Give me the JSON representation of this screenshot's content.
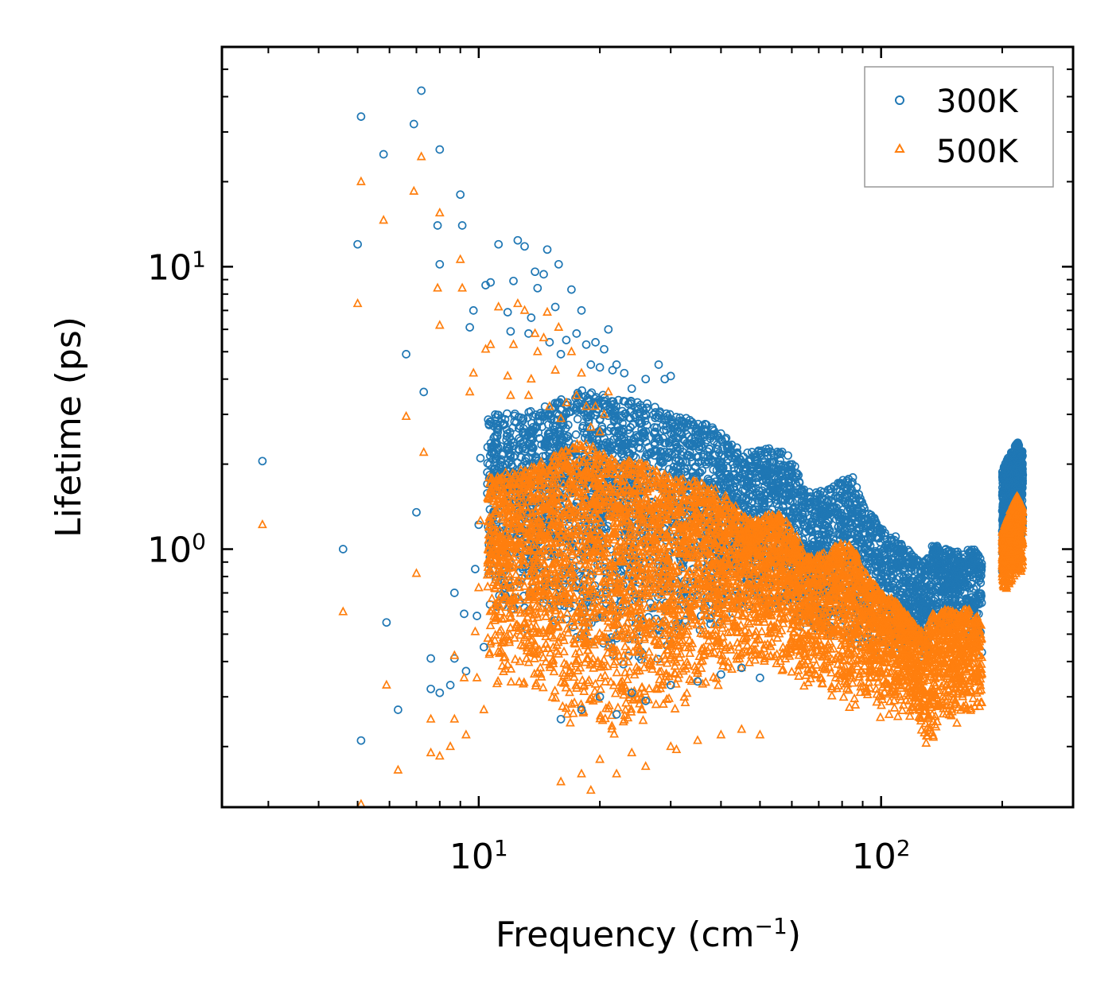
{
  "chart_data": {
    "type": "scatter",
    "xscale": "log",
    "yscale": "log",
    "xlabel": "Frequency (cm",
    "xlabel_sup": "−1",
    "xlabel_close": ")",
    "ylabel": "Lifetime (ps)",
    "xlim": [
      2.3,
      300
    ],
    "ylim": [
      0.122,
      60
    ],
    "legend": "top-right",
    "x_ticks": [
      {
        "value": 10,
        "base": "10",
        "exp": "1"
      },
      {
        "value": 100,
        "base": "10",
        "exp": "2"
      }
    ],
    "y_ticks": [
      {
        "value": 1,
        "base": "10",
        "exp": "0"
      },
      {
        "value": 10,
        "base": "10",
        "exp": "1"
      }
    ],
    "series": [
      {
        "name": "300K",
        "color": "#1f77b4",
        "marker": "circle",
        "points": [
          [
            2.9,
            2.05
          ],
          [
            4.6,
            1.0
          ],
          [
            5.0,
            12.0
          ],
          [
            5.1,
            34.0
          ],
          [
            5.1,
            0.21
          ],
          [
            5.8,
            25.0
          ],
          [
            5.9,
            0.55
          ],
          [
            6.3,
            0.27
          ],
          [
            6.6,
            4.9
          ],
          [
            6.9,
            32.0
          ],
          [
            7.0,
            1.35
          ],
          [
            7.2,
            42.0
          ],
          [
            7.3,
            3.6
          ],
          [
            7.6,
            0.41
          ],
          [
            7.6,
            0.32
          ],
          [
            7.9,
            14.0
          ],
          [
            8.0,
            10.2
          ],
          [
            8.0,
            26.0
          ],
          [
            8.0,
            0.31
          ],
          [
            8.5,
            0.33
          ],
          [
            8.7,
            0.41
          ],
          [
            8.7,
            0.7
          ],
          [
            9.0,
            18.0
          ],
          [
            9.1,
            14.0
          ],
          [
            9.2,
            0.59
          ],
          [
            9.3,
            0.37
          ],
          [
            9.5,
            6.1
          ],
          [
            9.7,
            7.0
          ],
          [
            9.8,
            0.85
          ],
          [
            9.9,
            0.58
          ],
          [
            10.0,
            1.22
          ],
          [
            10.1,
            2.1
          ],
          [
            10.3,
            0.45
          ],
          [
            10.4,
            8.6
          ],
          [
            10.7,
            8.8
          ],
          [
            10.8,
            2.2
          ],
          [
            11.2,
            12.0
          ],
          [
            11.8,
            6.9
          ],
          [
            12.0,
            5.9
          ],
          [
            12.2,
            8.9
          ],
          [
            12.5,
            12.4
          ],
          [
            12.9,
            2.9
          ],
          [
            13.0,
            11.8
          ],
          [
            13.3,
            5.8
          ],
          [
            13.5,
            6.6
          ],
          [
            13.8,
            9.6
          ],
          [
            14.0,
            8.4
          ],
          [
            14.5,
            9.4
          ],
          [
            14.8,
            11.5
          ],
          [
            15.0,
            5.4
          ],
          [
            15.5,
            7.2
          ],
          [
            15.8,
            10.2
          ],
          [
            16.0,
            4.9
          ],
          [
            16.5,
            5.5
          ],
          [
            17.0,
            8.3
          ],
          [
            17.5,
            5.8
          ],
          [
            18.0,
            7.0
          ],
          [
            18.5,
            5.3
          ],
          [
            19.0,
            4.5
          ],
          [
            19.5,
            5.4
          ],
          [
            20.0,
            4.4
          ],
          [
            20.5,
            5.1
          ],
          [
            21.0,
            6.0
          ],
          [
            21.5,
            4.3
          ],
          [
            22.0,
            4.5
          ],
          [
            23.0,
            4.2
          ],
          [
            24.0,
            3.7
          ],
          [
            26.0,
            4.0
          ],
          [
            28.0,
            4.5
          ],
          [
            29.0,
            4.0
          ],
          [
            30.0,
            4.1
          ],
          [
            16.0,
            0.25
          ],
          [
            18.0,
            0.27
          ],
          [
            20.0,
            0.3
          ],
          [
            22.0,
            0.26
          ],
          [
            24.0,
            0.31
          ],
          [
            26.0,
            0.29
          ],
          [
            30.0,
            0.33
          ],
          [
            35.0,
            0.34
          ],
          [
            40.0,
            0.36
          ],
          [
            45.0,
            0.38
          ],
          [
            50.0,
            0.35
          ]
        ]
      },
      {
        "name": "500K",
        "color": "#ff7f0e",
        "marker": "triangle",
        "points": [
          [
            2.9,
            1.22
          ],
          [
            4.6,
            0.6
          ],
          [
            5.0,
            7.4
          ],
          [
            5.1,
            20.0
          ],
          [
            5.1,
            0.125
          ],
          [
            5.8,
            14.6
          ],
          [
            5.9,
            0.33
          ],
          [
            6.3,
            0.165
          ],
          [
            6.6,
            2.95
          ],
          [
            6.9,
            18.5
          ],
          [
            7.0,
            0.82
          ],
          [
            7.2,
            24.5
          ],
          [
            7.3,
            2.2
          ],
          [
            7.6,
            0.25
          ],
          [
            7.6,
            0.19
          ],
          [
            7.9,
            8.4
          ],
          [
            8.0,
            6.2
          ],
          [
            8.0,
            15.5
          ],
          [
            8.0,
            0.185
          ],
          [
            8.5,
            0.2
          ],
          [
            8.7,
            0.25
          ],
          [
            8.7,
            0.42
          ],
          [
            9.0,
            10.6
          ],
          [
            9.1,
            8.4
          ],
          [
            9.2,
            0.35
          ],
          [
            9.3,
            0.22
          ],
          [
            9.5,
            3.6
          ],
          [
            9.7,
            4.2
          ],
          [
            9.8,
            0.51
          ],
          [
            9.9,
            0.35
          ],
          [
            10.0,
            0.73
          ],
          [
            10.1,
            1.26
          ],
          [
            10.3,
            0.27
          ],
          [
            10.4,
            5.1
          ],
          [
            10.7,
            5.3
          ],
          [
            10.8,
            1.3
          ],
          [
            11.2,
            7.2
          ],
          [
            11.8,
            4.1
          ],
          [
            12.0,
            3.5
          ],
          [
            12.2,
            5.3
          ],
          [
            12.5,
            7.4
          ],
          [
            12.9,
            1.75
          ],
          [
            13.0,
            7.0
          ],
          [
            13.3,
            3.5
          ],
          [
            13.5,
            4.0
          ],
          [
            13.8,
            5.8
          ],
          [
            14.0,
            5.0
          ],
          [
            14.5,
            5.6
          ],
          [
            14.8,
            6.9
          ],
          [
            15.0,
            3.2
          ],
          [
            15.5,
            4.3
          ],
          [
            15.8,
            6.1
          ],
          [
            16.0,
            2.9
          ],
          [
            16.5,
            3.3
          ],
          [
            17.0,
            5.0
          ],
          [
            17.5,
            3.5
          ],
          [
            18.0,
            4.2
          ],
          [
            18.5,
            3.2
          ],
          [
            19.0,
            2.7
          ],
          [
            19.5,
            3.2
          ],
          [
            20.0,
            2.6
          ],
          [
            20.5,
            3.0
          ],
          [
            21.0,
            3.6
          ],
          [
            16.0,
            0.15
          ],
          [
            18.0,
            0.16
          ],
          [
            19.0,
            0.14
          ],
          [
            20.0,
            0.18
          ],
          [
            22.0,
            0.16
          ],
          [
            24.0,
            0.19
          ],
          [
            26.0,
            0.17
          ],
          [
            30.0,
            0.2
          ],
          [
            31.0,
            0.195
          ],
          [
            35.0,
            0.21
          ],
          [
            40.0,
            0.22
          ],
          [
            45.0,
            0.23
          ],
          [
            50.0,
            0.22
          ]
        ]
      }
    ],
    "dense_bands": [
      {
        "series": "300K",
        "count": 4200,
        "envelope": [
          [
            10.5,
            0.55,
            3.0
          ],
          [
            14.0,
            0.5,
            3.1
          ],
          [
            18.0,
            0.42,
            3.7
          ],
          [
            22.0,
            0.38,
            3.4
          ],
          [
            26.0,
            0.36,
            3.3
          ],
          [
            30.0,
            0.44,
            3.0
          ],
          [
            35.0,
            0.5,
            2.9
          ],
          [
            40.0,
            0.55,
            2.6
          ],
          [
            45.0,
            0.6,
            2.2
          ],
          [
            50.0,
            0.62,
            2.25
          ],
          [
            55.0,
            0.6,
            2.3
          ],
          [
            60.0,
            0.55,
            2.1
          ],
          [
            65.0,
            0.5,
            1.6
          ],
          [
            70.0,
            0.5,
            1.6
          ],
          [
            75.0,
            0.48,
            1.65
          ],
          [
            80.0,
            0.47,
            1.75
          ],
          [
            85.0,
            0.45,
            1.85
          ],
          [
            90.0,
            0.43,
            1.45
          ],
          [
            100.0,
            0.42,
            1.2
          ],
          [
            110.0,
            0.42,
            1.1
          ],
          [
            120.0,
            0.42,
            0.95
          ],
          [
            128.0,
            0.4,
            0.9
          ],
          [
            135.0,
            0.5,
            1.05
          ],
          [
            145.0,
            0.52,
            1.0
          ],
          [
            155.0,
            0.5,
            0.98
          ],
          [
            165.0,
            0.48,
            1.0
          ],
          [
            172.0,
            0.45,
            1.0
          ],
          [
            178.0,
            0.42,
            0.9
          ]
        ]
      },
      {
        "series": "500K",
        "count": 5200,
        "envelope": [
          [
            10.5,
            0.3,
            1.8
          ],
          [
            14.0,
            0.28,
            2.0
          ],
          [
            18.0,
            0.22,
            2.4
          ],
          [
            22.0,
            0.21,
            2.1
          ],
          [
            26.0,
            0.22,
            2.0
          ],
          [
            30.0,
            0.25,
            1.8
          ],
          [
            35.0,
            0.3,
            1.75
          ],
          [
            40.0,
            0.33,
            1.6
          ],
          [
            45.0,
            0.36,
            1.35
          ],
          [
            50.0,
            0.38,
            1.3
          ],
          [
            55.0,
            0.37,
            1.35
          ],
          [
            60.0,
            0.34,
            1.2
          ],
          [
            65.0,
            0.31,
            0.95
          ],
          [
            70.0,
            0.3,
            0.95
          ],
          [
            75.0,
            0.29,
            1.0
          ],
          [
            80.0,
            0.28,
            1.05
          ],
          [
            85.0,
            0.27,
            1.05
          ],
          [
            90.0,
            0.26,
            0.85
          ],
          [
            100.0,
            0.25,
            0.7
          ],
          [
            110.0,
            0.25,
            0.65
          ],
          [
            120.0,
            0.25,
            0.55
          ],
          [
            128.0,
            0.2,
            0.5
          ],
          [
            135.0,
            0.21,
            0.6
          ],
          [
            145.0,
            0.22,
            0.62
          ],
          [
            155.0,
            0.23,
            0.6
          ],
          [
            165.0,
            0.24,
            0.62
          ],
          [
            172.0,
            0.25,
            0.6
          ],
          [
            178.0,
            0.24,
            0.55
          ]
        ]
      },
      {
        "series": "300K",
        "count": 700,
        "envelope": [
          [
            200.0,
            0.8,
            1.9
          ],
          [
            210.0,
            1.0,
            2.2
          ],
          [
            218.0,
            1.1,
            2.4
          ],
          [
            225.0,
            1.1,
            2.2
          ]
        ]
      },
      {
        "series": "500K",
        "count": 700,
        "envelope": [
          [
            200.0,
            0.7,
            1.15
          ],
          [
            210.0,
            0.75,
            1.4
          ],
          [
            218.0,
            0.8,
            1.55
          ],
          [
            225.0,
            0.8,
            1.4
          ]
        ]
      }
    ]
  }
}
